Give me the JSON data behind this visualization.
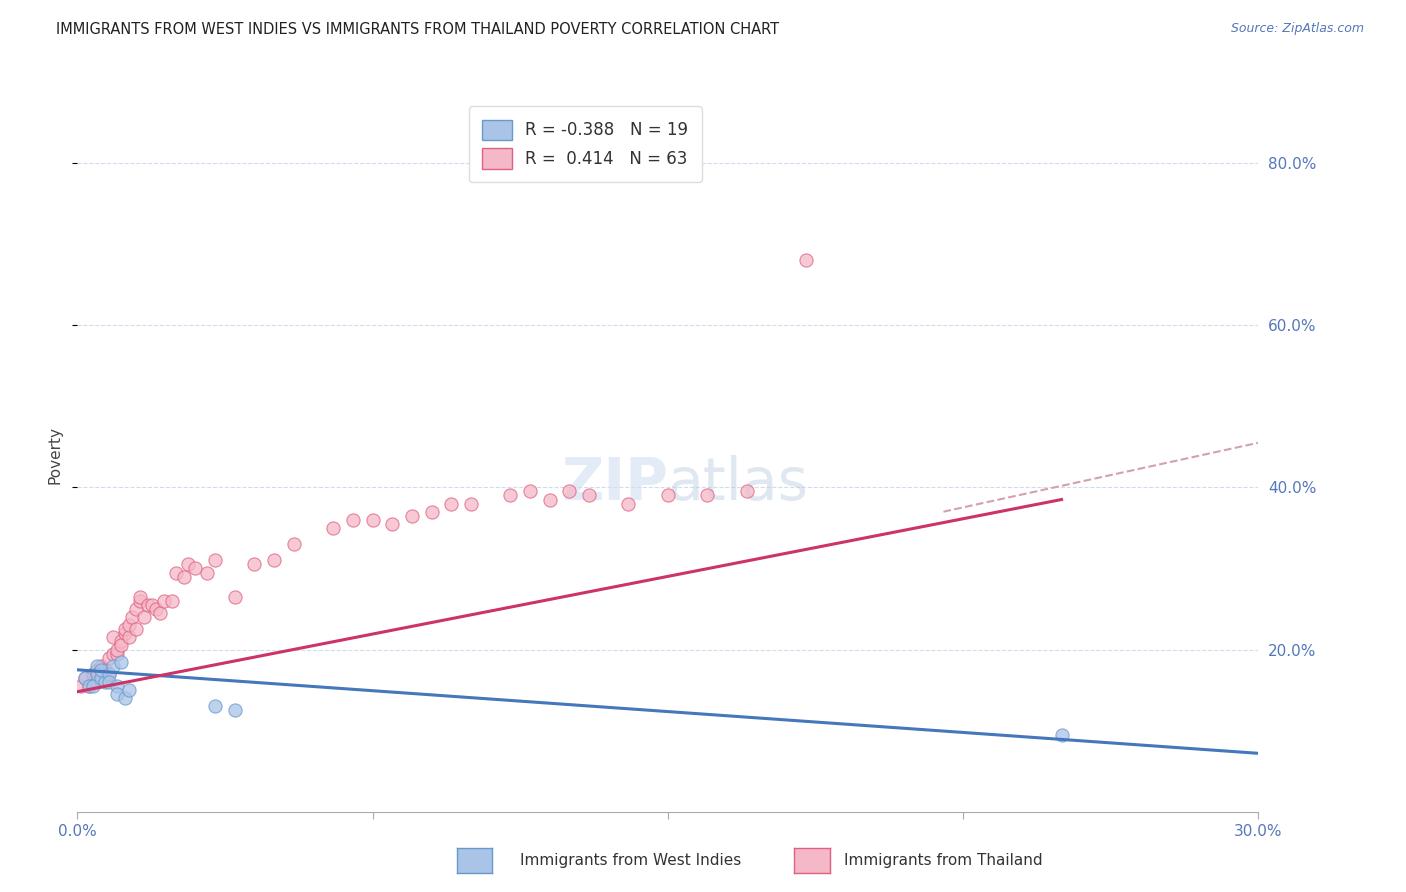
{
  "title": "IMMIGRANTS FROM WEST INDIES VS IMMIGRANTS FROM THAILAND POVERTY CORRELATION CHART",
  "source": "Source: ZipAtlas.com",
  "ylabel": "Poverty",
  "right_yticks": [
    "80.0%",
    "60.0%",
    "40.0%",
    "20.0%"
  ],
  "right_ytick_vals": [
    0.8,
    0.6,
    0.4,
    0.2
  ],
  "xlim": [
    0.0,
    0.3
  ],
  "ylim": [
    0.0,
    0.88
  ],
  "color_west_indies_fill": "#aac4e8",
  "color_west_indies_edge": "#6699cc",
  "color_thailand_fill": "#f5b8c8",
  "color_thailand_edge": "#e06080",
  "color_line_west_indies": "#4477bb",
  "color_line_thailand": "#cc3366",
  "color_line_dashed": "#d4a0b0",
  "west_indies_x": [
    0.002,
    0.003,
    0.004,
    0.005,
    0.005,
    0.006,
    0.006,
    0.007,
    0.008,
    0.008,
    0.009,
    0.01,
    0.01,
    0.011,
    0.012,
    0.013,
    0.035,
    0.04,
    0.25
  ],
  "west_indies_y": [
    0.165,
    0.155,
    0.155,
    0.18,
    0.17,
    0.165,
    0.175,
    0.16,
    0.17,
    0.16,
    0.18,
    0.155,
    0.145,
    0.185,
    0.14,
    0.15,
    0.13,
    0.125,
    0.095
  ],
  "thailand_x": [
    0.001,
    0.002,
    0.003,
    0.004,
    0.004,
    0.005,
    0.005,
    0.006,
    0.006,
    0.007,
    0.007,
    0.008,
    0.008,
    0.009,
    0.009,
    0.01,
    0.01,
    0.011,
    0.011,
    0.012,
    0.012,
    0.013,
    0.013,
    0.014,
    0.015,
    0.015,
    0.016,
    0.016,
    0.017,
    0.018,
    0.019,
    0.02,
    0.021,
    0.022,
    0.024,
    0.025,
    0.027,
    0.028,
    0.03,
    0.033,
    0.035,
    0.04,
    0.045,
    0.05,
    0.055,
    0.065,
    0.07,
    0.075,
    0.08,
    0.085,
    0.09,
    0.095,
    0.1,
    0.11,
    0.115,
    0.12,
    0.125,
    0.13,
    0.14,
    0.15,
    0.16,
    0.17,
    0.185
  ],
  "thailand_y": [
    0.155,
    0.165,
    0.155,
    0.16,
    0.17,
    0.16,
    0.175,
    0.165,
    0.18,
    0.165,
    0.175,
    0.17,
    0.19,
    0.215,
    0.195,
    0.195,
    0.2,
    0.21,
    0.205,
    0.22,
    0.225,
    0.215,
    0.23,
    0.24,
    0.25,
    0.225,
    0.26,
    0.265,
    0.24,
    0.255,
    0.255,
    0.25,
    0.245,
    0.26,
    0.26,
    0.295,
    0.29,
    0.305,
    0.3,
    0.295,
    0.31,
    0.265,
    0.305,
    0.31,
    0.33,
    0.35,
    0.36,
    0.36,
    0.355,
    0.365,
    0.37,
    0.38,
    0.38,
    0.39,
    0.395,
    0.385,
    0.395,
    0.39,
    0.38,
    0.39,
    0.39,
    0.395,
    0.68
  ],
  "wi_line_x0": 0.0,
  "wi_line_y0": 0.175,
  "wi_line_x1": 0.3,
  "wi_line_y1": 0.072,
  "th_line_x0": 0.0,
  "th_line_y0": 0.148,
  "th_line_x1": 0.25,
  "th_line_y1": 0.385,
  "dash_line_x0": 0.22,
  "dash_line_y0": 0.37,
  "dash_line_x1": 0.3,
  "dash_line_y1": 0.455
}
